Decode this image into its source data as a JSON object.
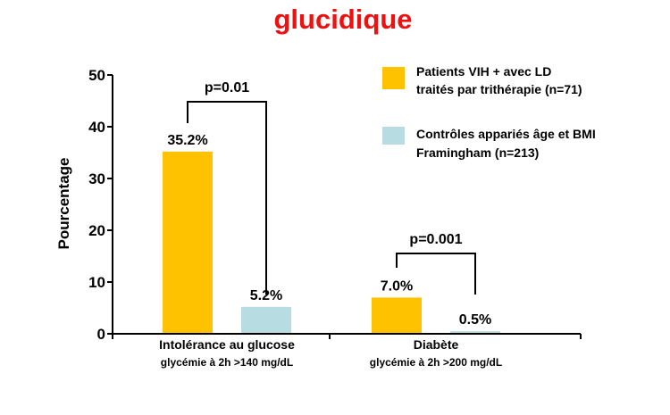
{
  "page": {
    "title": "glucidique",
    "title_color": "#ee1111"
  },
  "chart_data": {
    "type": "bar",
    "ylabel": "Pourcentage",
    "ylim": [
      0,
      50
    ],
    "yticks": [
      "0",
      "10",
      "20",
      "30",
      "40",
      "50"
    ],
    "categories": [
      {
        "label": "Intolérance au glucose",
        "sublabel": "glycémie à 2h >140 mg/dL"
      },
      {
        "label": "Diabète",
        "sublabel": "glycémie à 2h >200 mg/dL"
      }
    ],
    "series": [
      {
        "name": "Patients VIH + avec LD traités par trithérapie (n=71)",
        "legend_lines": [
          "Patients VIH + avec LD",
          "traités par trithérapie (n=71)"
        ],
        "color": "#ffc200",
        "values": [
          35.2,
          7.0
        ],
        "value_labels": [
          "35.2%",
          "7.0%"
        ]
      },
      {
        "name": "Contrôles appariés âge et BMI Framingham (n=213)",
        "legend_lines": [
          "Contrôles appariés âge et BMI",
          "Framingham  (n=213)"
        ],
        "color": "#b7dde2",
        "values": [
          5.2,
          0.5
        ],
        "value_labels": [
          "5.2%",
          "0.5%"
        ]
      }
    ],
    "comparisons": [
      {
        "category_index": 0,
        "label": "p=0.01"
      },
      {
        "category_index": 1,
        "label": "p=0.001"
      }
    ],
    "legend_position": "top-right"
  }
}
